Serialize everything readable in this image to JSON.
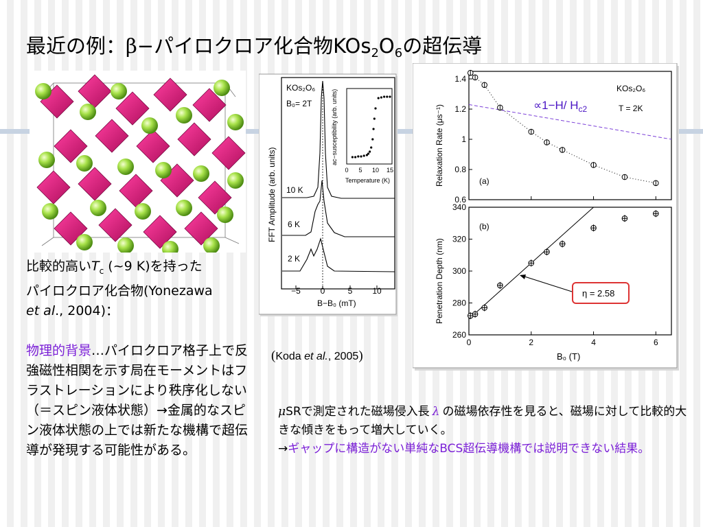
{
  "title": {
    "pre": "最近の例：",
    "beta": "β",
    "mid": "−パイロクロア化合物KOs",
    "s1": "2",
    "o": "O",
    "s2": "6",
    "post": "の超伝導"
  },
  "left_caption": {
    "l1a": "比較的高い",
    "Tc": "T",
    "c": "c",
    "l1b": " (~9 K)を持った",
    "l2": "パイロクロア化合物(Yonezawa",
    "etal": "et al",
    "l3": "., 2004)："
  },
  "left_body": {
    "highlight": "物理的背景",
    "text": "…パイロクロア格子上で反強磁性相関を示す局在モーメントはフラストレーションにより秩序化しない（＝スピン液体状態）→金属的なスピン液体状態の上では新たな機構で超伝導が発現する可能性がある。"
  },
  "citation": {
    "open": "(",
    "name": "Koda ",
    "etal": "et al.",
    "year": ", 2005",
    "close": ")"
  },
  "bottom_note": {
    "mu": "μ",
    "part1": "SRで測定された磁場侵入長",
    "lambda": "λ",
    "part2": "の磁場依存性を見ると、磁場に対して比較的大きな傾きをもって増大していく。",
    "arrow": "→",
    "purple": "ギャップに構造がない単純なBCS超伝導機構では説明できない結果。"
  },
  "fft_panel": {
    "sample": "KOs₂O₆",
    "field": "B₀= 2T",
    "ylabel": "FFT Amplitude (arb. units)",
    "xlabel": "B−B₀ (mT)",
    "xticks": [
      "−5",
      "0",
      "5",
      "10"
    ],
    "traces": [
      "10 K",
      "6 K",
      "2 K"
    ],
    "inset_ylabel": "ac−susceptibility (arb. units)",
    "inset_xlabel": "Temperature (K)",
    "inset_xticks": [
      "0",
      "5",
      "10",
      "15"
    ]
  },
  "colors": {
    "stripe": "#c7d3e2",
    "accent_purple": "#7a1fd6",
    "fit_dash": "#7b3fd8",
    "eta_box": "#d33"
  },
  "chart_data": [
    {
      "type": "scatter",
      "label": "(a)",
      "annotation_sample": "KOs₂O₆",
      "annotation_field": "T = 2K",
      "annotation_fit": "∝1−H/ H",
      "annotation_fit_sub": "c2",
      "xlabel": "",
      "ylabel": "Relaxation Rate (μs⁻¹)",
      "xlim": [
        0,
        6.5
      ],
      "ylim": [
        0.6,
        1.45
      ],
      "yticks": [
        "0.6",
        "0.8",
        "1",
        "1.2",
        "1.4"
      ],
      "x": [
        0.05,
        0.2,
        0.5,
        1.0,
        2.0,
        2.5,
        3.0,
        4.0,
        5.0,
        6.0
      ],
      "y": [
        1.44,
        1.41,
        1.36,
        1.21,
        1.05,
        0.98,
        0.93,
        0.83,
        0.75,
        0.71
      ]
    },
    {
      "type": "scatter",
      "label": "(b)",
      "annotation": "η = 2.58",
      "xlabel": "B₀ (T)",
      "ylabel": "Penetration Depth (nm)",
      "xlim": [
        0,
        6.5
      ],
      "ylim": [
        260,
        340
      ],
      "xticks": [
        "0",
        "2",
        "4",
        "6"
      ],
      "yticks": [
        "260",
        "280",
        "300",
        "320",
        "340"
      ],
      "x": [
        0.05,
        0.2,
        0.5,
        1.0,
        2.0,
        2.5,
        3.0,
        4.0,
        5.0,
        6.0
      ],
      "y": [
        272,
        273,
        277,
        291,
        305,
        312,
        317,
        327,
        333,
        336
      ]
    }
  ]
}
